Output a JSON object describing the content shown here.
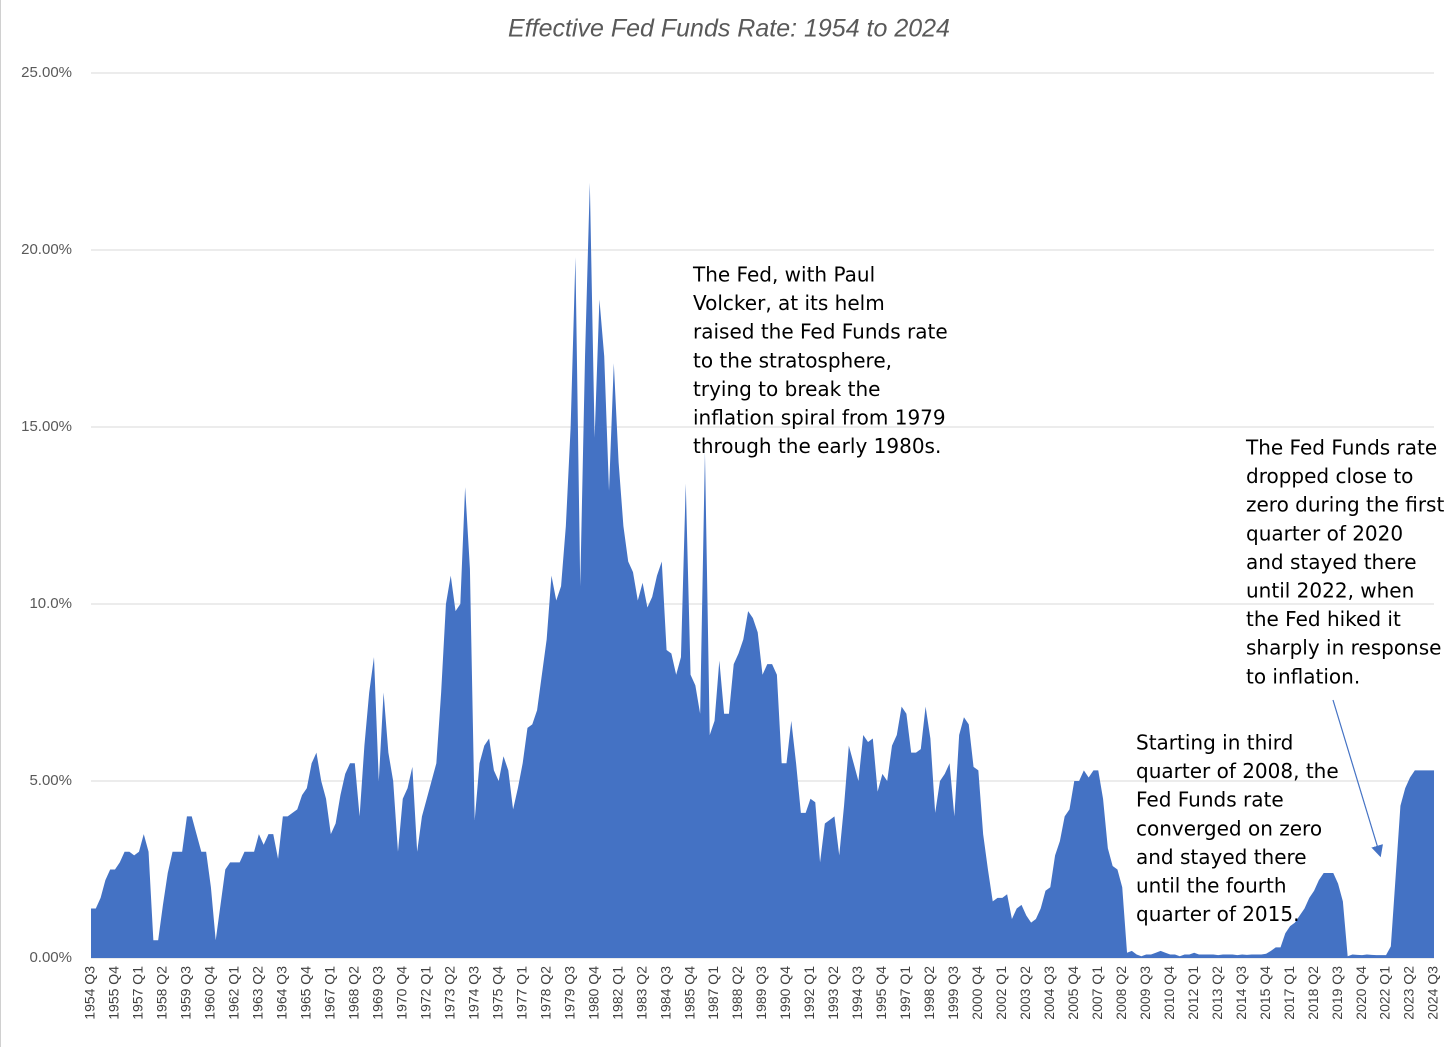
{
  "chart_data": {
    "type": "area",
    "title": "Effective Fed Funds Rate: 1954 to 2024",
    "categories": [
      "1954 Q3",
      null,
      null,
      null,
      null,
      "1955 Q4",
      null,
      null,
      null,
      null,
      "1957 Q1",
      null,
      null,
      null,
      null,
      "1958 Q2",
      null,
      null,
      null,
      null,
      "1959 Q3",
      null,
      null,
      null,
      null,
      "1960 Q4",
      null,
      null,
      null,
      null,
      "1962 Q1",
      null,
      null,
      null,
      null,
      "1963 Q2",
      null,
      null,
      null,
      null,
      "1964 Q3",
      null,
      null,
      null,
      null,
      "1965 Q4",
      null,
      null,
      null,
      null,
      "1967 Q1",
      null,
      null,
      null,
      null,
      "1968 Q2",
      null,
      null,
      null,
      null,
      "1969 Q3",
      null,
      null,
      null,
      null,
      "1970 Q4",
      null,
      null,
      null,
      null,
      "1972 Q1",
      null,
      null,
      null,
      null,
      "1973 Q2",
      null,
      null,
      null,
      null,
      "1974 Q3",
      null,
      null,
      null,
      null,
      "1975 Q4",
      null,
      null,
      null,
      null,
      "1977 Q1",
      null,
      null,
      null,
      null,
      "1978 Q2",
      null,
      null,
      null,
      null,
      "1979 Q3",
      null,
      null,
      null,
      null,
      "1980 Q4",
      null,
      null,
      null,
      null,
      "1982 Q1",
      null,
      null,
      null,
      null,
      "1983 Q2",
      null,
      null,
      null,
      null,
      "1984 Q3",
      null,
      null,
      null,
      null,
      "1985 Q4",
      null,
      null,
      null,
      null,
      "1987 Q1",
      null,
      null,
      null,
      null,
      "1988 Q2",
      null,
      null,
      null,
      null,
      "1989 Q3",
      null,
      null,
      null,
      null,
      "1990 Q4",
      null,
      null,
      null,
      null,
      "1992 Q1",
      null,
      null,
      null,
      null,
      "1993 Q2",
      null,
      null,
      null,
      null,
      "1994 Q3",
      null,
      null,
      null,
      null,
      "1995 Q4",
      null,
      null,
      null,
      null,
      "1997 Q1",
      null,
      null,
      null,
      null,
      "1998 Q2",
      null,
      null,
      null,
      null,
      "1999 Q3",
      null,
      null,
      null,
      null,
      "2000 Q4",
      null,
      null,
      null,
      null,
      "2002 Q1",
      null,
      null,
      null,
      null,
      "2003 Q2",
      null,
      null,
      null,
      null,
      "2004 Q3",
      null,
      null,
      null,
      null,
      "2005 Q4",
      null,
      null,
      null,
      null,
      "2007 Q1",
      null,
      null,
      null,
      null,
      "2008 Q2",
      null,
      null,
      null,
      null,
      "2009 Q3",
      null,
      null,
      null,
      null,
      "2010 Q4",
      null,
      null,
      null,
      null,
      "2012 Q1",
      null,
      null,
      null,
      null,
      "2013 Q2",
      null,
      null,
      null,
      null,
      "2014 Q3",
      null,
      null,
      null,
      null,
      "2015 Q4",
      null,
      null,
      null,
      null,
      "2017 Q1",
      null,
      null,
      null,
      null,
      "2018 Q2",
      null,
      null,
      null,
      null,
      "2019 Q3",
      null,
      null,
      null,
      null,
      "2020 Q4",
      null,
      null,
      null,
      null,
      "2022 Q1",
      null,
      null,
      null,
      null,
      "2023 Q2",
      null,
      null,
      null,
      null,
      "2024 Q3"
    ],
    "values": [
      1.4,
      1.4,
      1.7,
      2.2,
      2.5,
      2.5,
      2.7,
      3.0,
      3.0,
      2.9,
      3.0,
      3.5,
      3.0,
      0.5,
      0.5,
      1.5,
      2.4,
      3.0,
      3.0,
      3.0,
      4.0,
      4.0,
      3.5,
      3.0,
      3.0,
      2.0,
      0.5,
      1.5,
      2.5,
      2.7,
      2.7,
      2.7,
      3.0,
      3.0,
      3.0,
      3.5,
      3.2,
      3.5,
      3.5,
      2.8,
      4.0,
      4.0,
      4.1,
      4.2,
      4.6,
      4.8,
      5.5,
      5.8,
      5.0,
      4.5,
      3.5,
      3.8,
      4.6,
      5.2,
      5.5,
      5.5,
      4.0,
      6.0,
      7.5,
      8.5,
      5.0,
      7.5,
      5.8,
      5.0,
      3.0,
      4.5,
      4.8,
      5.4,
      3.0,
      4.0,
      4.5,
      5.0,
      5.5,
      7.5,
      10.0,
      10.8,
      9.8,
      10.0,
      13.3,
      11.0,
      3.9,
      5.5,
      6.0,
      6.2,
      5.3,
      5.0,
      5.7,
      5.3,
      4.2,
      4.8,
      5.5,
      6.5,
      6.6,
      7.0,
      8.0,
      9.0,
      10.8,
      10.1,
      10.5,
      12.2,
      15.0,
      19.8,
      10.5,
      17.0,
      21.9,
      14.7,
      18.6,
      17.0,
      13.2,
      16.8,
      14.0,
      12.2,
      11.2,
      10.9,
      10.1,
      10.6,
      9.9,
      10.2,
      10.8,
      11.2,
      8.7,
      8.6,
      8.0,
      8.5,
      13.4,
      8.0,
      7.7,
      6.9,
      14.3,
      6.3,
      6.7,
      8.4,
      6.9,
      6.9,
      8.3,
      8.6,
      9.0,
      9.8,
      9.6,
      9.2,
      8.0,
      8.3,
      8.3,
      8.0,
      5.5,
      5.5,
      6.7,
      5.5,
      4.1,
      4.1,
      4.5,
      4.4,
      2.7,
      3.8,
      3.9,
      4.0,
      2.9,
      4.3,
      6.0,
      5.5,
      5.0,
      6.3,
      6.1,
      6.2,
      4.7,
      5.2,
      5.0,
      6.0,
      6.3,
      7.1,
      6.9,
      5.8,
      5.8,
      5.9,
      7.1,
      6.2,
      4.1,
      5.0,
      5.2,
      5.5,
      4.0,
      6.3,
      6.8,
      6.6,
      5.4,
      5.3,
      3.5,
      2.5,
      1.6,
      1.7,
      1.7,
      1.8,
      1.1,
      1.4,
      1.5,
      1.2,
      1.0,
      1.1,
      1.4,
      1.9,
      2.0,
      2.9,
      3.3,
      4.0,
      4.2,
      5.0,
      5.0,
      5.3,
      5.1,
      5.3,
      5.3,
      4.5,
      3.1,
      2.6,
      2.5,
      2.0,
      0.15,
      0.2,
      0.1,
      0.05,
      0.1,
      0.1,
      0.15,
      0.2,
      0.15,
      0.1,
      0.1,
      0.05,
      0.1,
      0.1,
      0.15,
      0.1,
      0.1,
      0.1,
      0.1,
      0.08,
      0.1,
      0.1,
      0.1,
      0.08,
      0.1,
      0.09,
      0.1,
      0.1,
      0.1,
      0.12,
      0.2,
      0.3,
      0.3,
      0.7,
      0.9,
      1.0,
      1.2,
      1.4,
      1.7,
      1.9,
      2.2,
      2.4,
      2.4,
      2.4,
      2.1,
      1.6,
      0.05,
      0.1,
      0.09,
      0.08,
      0.1,
      0.09,
      0.08,
      0.08,
      0.08,
      0.33,
      2.3,
      4.3,
      4.8,
      5.1,
      5.3,
      5.3,
      5.3,
      5.3,
      5.3
    ],
    "color": "#4472c4",
    "ylim": [
      0,
      25
    ],
    "yticks": [
      {
        "value": 0,
        "label": "0.00%"
      },
      {
        "value": 5,
        "label": "5.00%"
      },
      {
        "value": 10,
        "label": "10.0%"
      },
      {
        "value": 15,
        "label": "15.00%"
      },
      {
        "value": 20,
        "label": "20.00%"
      },
      {
        "value": 25,
        "label": "25.00%"
      }
    ],
    "grid": true,
    "annotations": [
      {
        "lines": [
          "The Fed, with Paul",
          "Volcker, at its helm",
          "raised the Fed Funds rate",
          "to the stratosphere,",
          "trying to break the",
          "inflation spiral from 1979",
          "through the early 1980s."
        ]
      },
      {
        "lines": [
          "The Fed Funds rate",
          "dropped close to",
          "zero during the first",
          "quarter of 2020",
          "and stayed there",
          "until 2022, when",
          "the Fed hiked it",
          "sharply in response",
          "to inflation."
        ]
      },
      {
        "lines": [
          "Starting in third",
          "quarter of 2008, the",
          "Fed Funds rate",
          "converged on zero",
          "and stayed there",
          "until the fourth",
          "quarter of 2015."
        ]
      }
    ]
  }
}
